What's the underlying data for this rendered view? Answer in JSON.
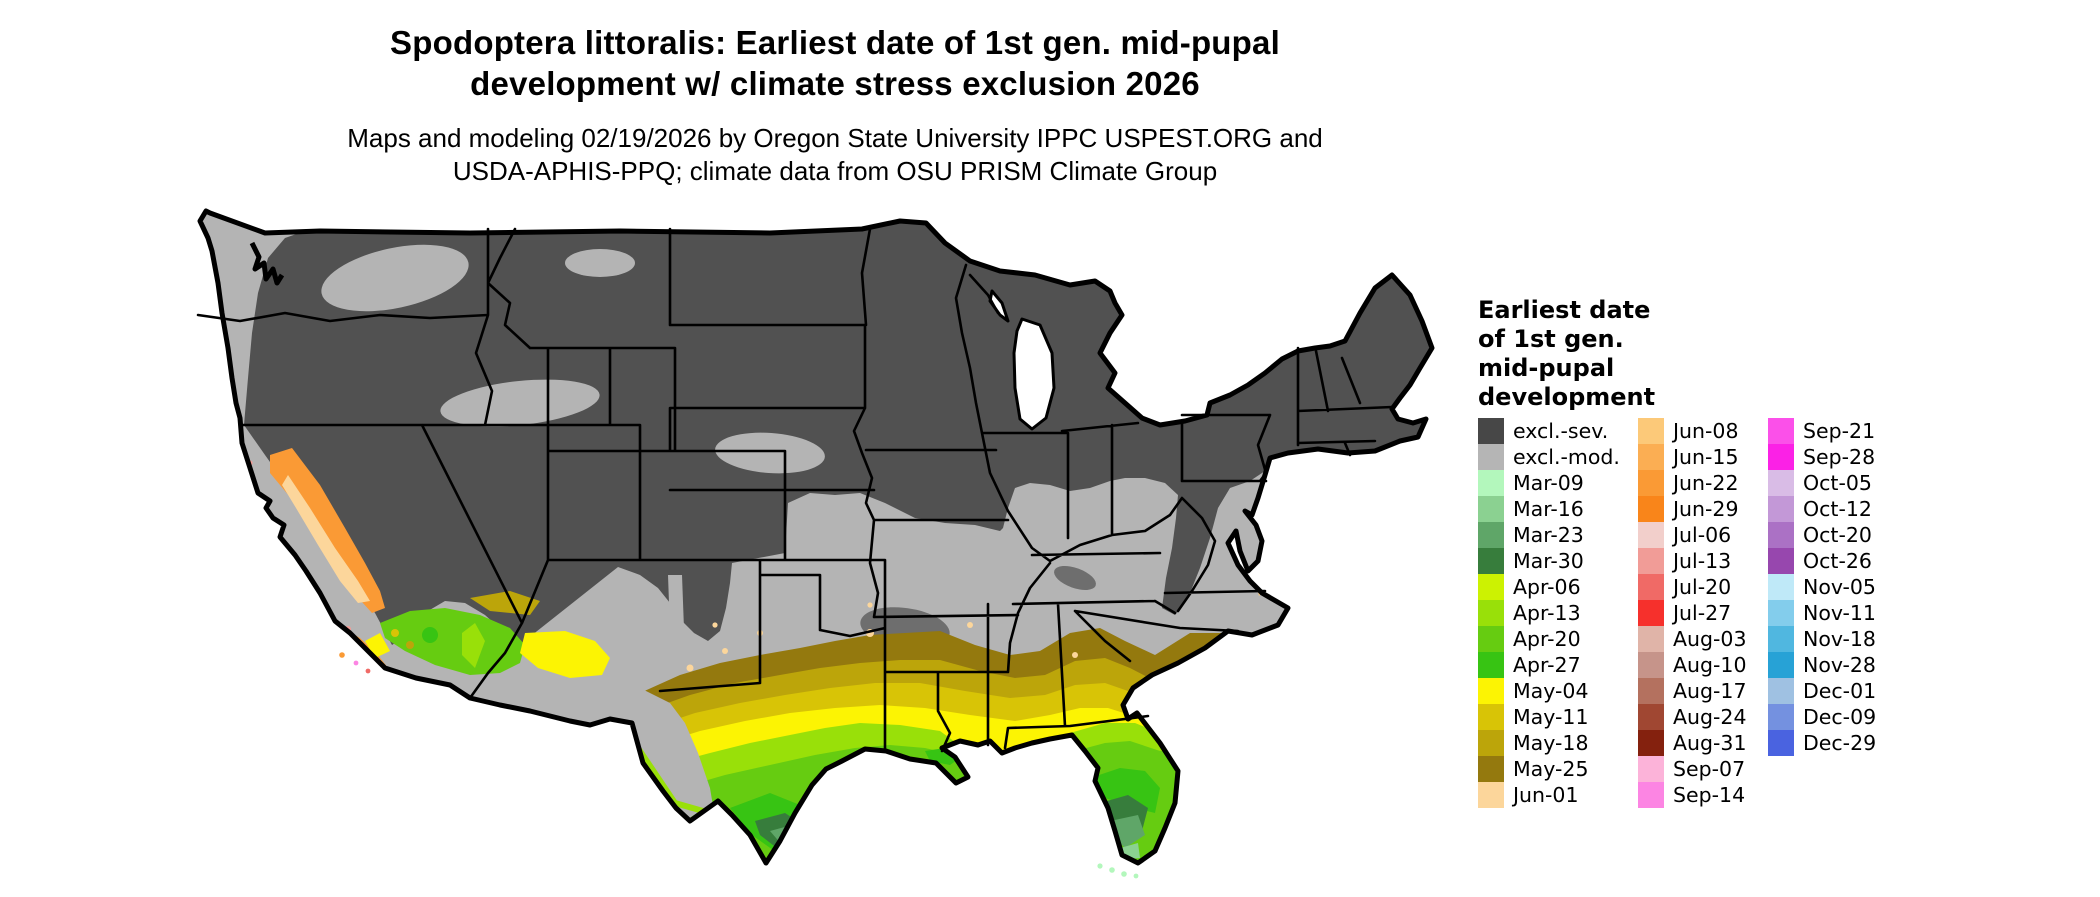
{
  "title": {
    "line1": "Spodoptera littoralis: Earliest date of 1st gen. mid-pupal",
    "line2": "development w/ climate stress exclusion 2026"
  },
  "subtitle": {
    "line1": "Maps and modeling 02/19/2026 by Oregon State University IPPC USPEST.ORG and",
    "line2": "USDA-APHIS-PPQ; climate data from OSU PRISM Climate Group"
  },
  "legend": {
    "title_lines": [
      "Earliest date",
      "of 1st gen.",
      "mid-pupal",
      "development"
    ],
    "columns": [
      [
        {
          "label": "excl.-sev.",
          "color": "#474747"
        },
        {
          "label": "excl.-mod.",
          "color": "#b5b5b5"
        },
        {
          "label": "Mar-09",
          "color": "#b3f7bc"
        },
        {
          "label": "Mar-16",
          "color": "#8bd191"
        },
        {
          "label": "Mar-23",
          "color": "#5fa668"
        },
        {
          "label": "Mar-30",
          "color": "#377d3c"
        },
        {
          "label": "Apr-06",
          "color": "#ccf202"
        },
        {
          "label": "Apr-13",
          "color": "#99e009"
        },
        {
          "label": "Apr-20",
          "color": "#66cc11"
        },
        {
          "label": "Apr-27",
          "color": "#37c413"
        },
        {
          "label": "May-04",
          "color": "#fcf403"
        },
        {
          "label": "May-11",
          "color": "#d8c406"
        },
        {
          "label": "May-18",
          "color": "#bca50a"
        },
        {
          "label": "May-25",
          "color": "#94790e"
        },
        {
          "label": "Jun-01",
          "color": "#fcd69b"
        }
      ],
      [
        {
          "label": "Jun-08",
          "color": "#fcc979"
        },
        {
          "label": "Jun-15",
          "color": "#fbae53"
        },
        {
          "label": "Jun-22",
          "color": "#fa9a35"
        },
        {
          "label": "Jun-29",
          "color": "#f9851a"
        },
        {
          "label": "Jul-06",
          "color": "#f2cfcb"
        },
        {
          "label": "Jul-13",
          "color": "#f19c97"
        },
        {
          "label": "Jul-20",
          "color": "#f06a66"
        },
        {
          "label": "Jul-27",
          "color": "#f6302c"
        },
        {
          "label": "Aug-03",
          "color": "#e0b4a8"
        },
        {
          "label": "Aug-10",
          "color": "#c6948a"
        },
        {
          "label": "Aug-17",
          "color": "#b4715f"
        },
        {
          "label": "Aug-24",
          "color": "#a04732"
        },
        {
          "label": "Aug-31",
          "color": "#84210e"
        },
        {
          "label": "Sep-07",
          "color": "#fcb3d9"
        },
        {
          "label": "Sep-14",
          "color": "#fc85e3"
        }
      ],
      [
        {
          "label": "Sep-21",
          "color": "#fb50e9"
        },
        {
          "label": "Sep-28",
          "color": "#fb21e6"
        },
        {
          "label": "Oct-05",
          "color": "#d9bce6"
        },
        {
          "label": "Oct-12",
          "color": "#c398d7"
        },
        {
          "label": "Oct-20",
          "color": "#ab71c5"
        },
        {
          "label": "Oct-26",
          "color": "#9747ae"
        },
        {
          "label": "Nov-05",
          "color": "#bfe9f8"
        },
        {
          "label": "Nov-11",
          "color": "#83cdec"
        },
        {
          "label": "Nov-18",
          "color": "#50b7e0"
        },
        {
          "label": "Nov-28",
          "color": "#27a2d6"
        },
        {
          "label": "Dec-01",
          "color": "#9fc1e2"
        },
        {
          "label": "Dec-09",
          "color": "#7491e0"
        },
        {
          "label": "Dec-29",
          "color": "#4a63e0"
        }
      ]
    ]
  },
  "map": {
    "palette": {
      "land_gray": "#b4b4b4",
      "excl_dark": "#515151",
      "speckle_dark": "#6e6e6e",
      "water": "#ffffff",
      "mar09": "#b3f7bc",
      "mar16": "#8bd191",
      "mar23": "#5fa668",
      "mar30": "#377d3c",
      "apr06": "#ccf202",
      "apr13": "#99e009",
      "apr20": "#66cc11",
      "apr27": "#37c413",
      "may04": "#fcf403",
      "may11": "#d8c406",
      "may18": "#bca50a",
      "may25": "#94790e",
      "jun01": "#fcd69b",
      "jun08": "#fcc979",
      "jun15": "#fbae53",
      "jun22": "#fa9a35",
      "jun29": "#f9851a",
      "jul13": "#f19c97",
      "jul20": "#f06a66",
      "jul27": "#f6302c",
      "sep14": "#fc85e3"
    }
  }
}
